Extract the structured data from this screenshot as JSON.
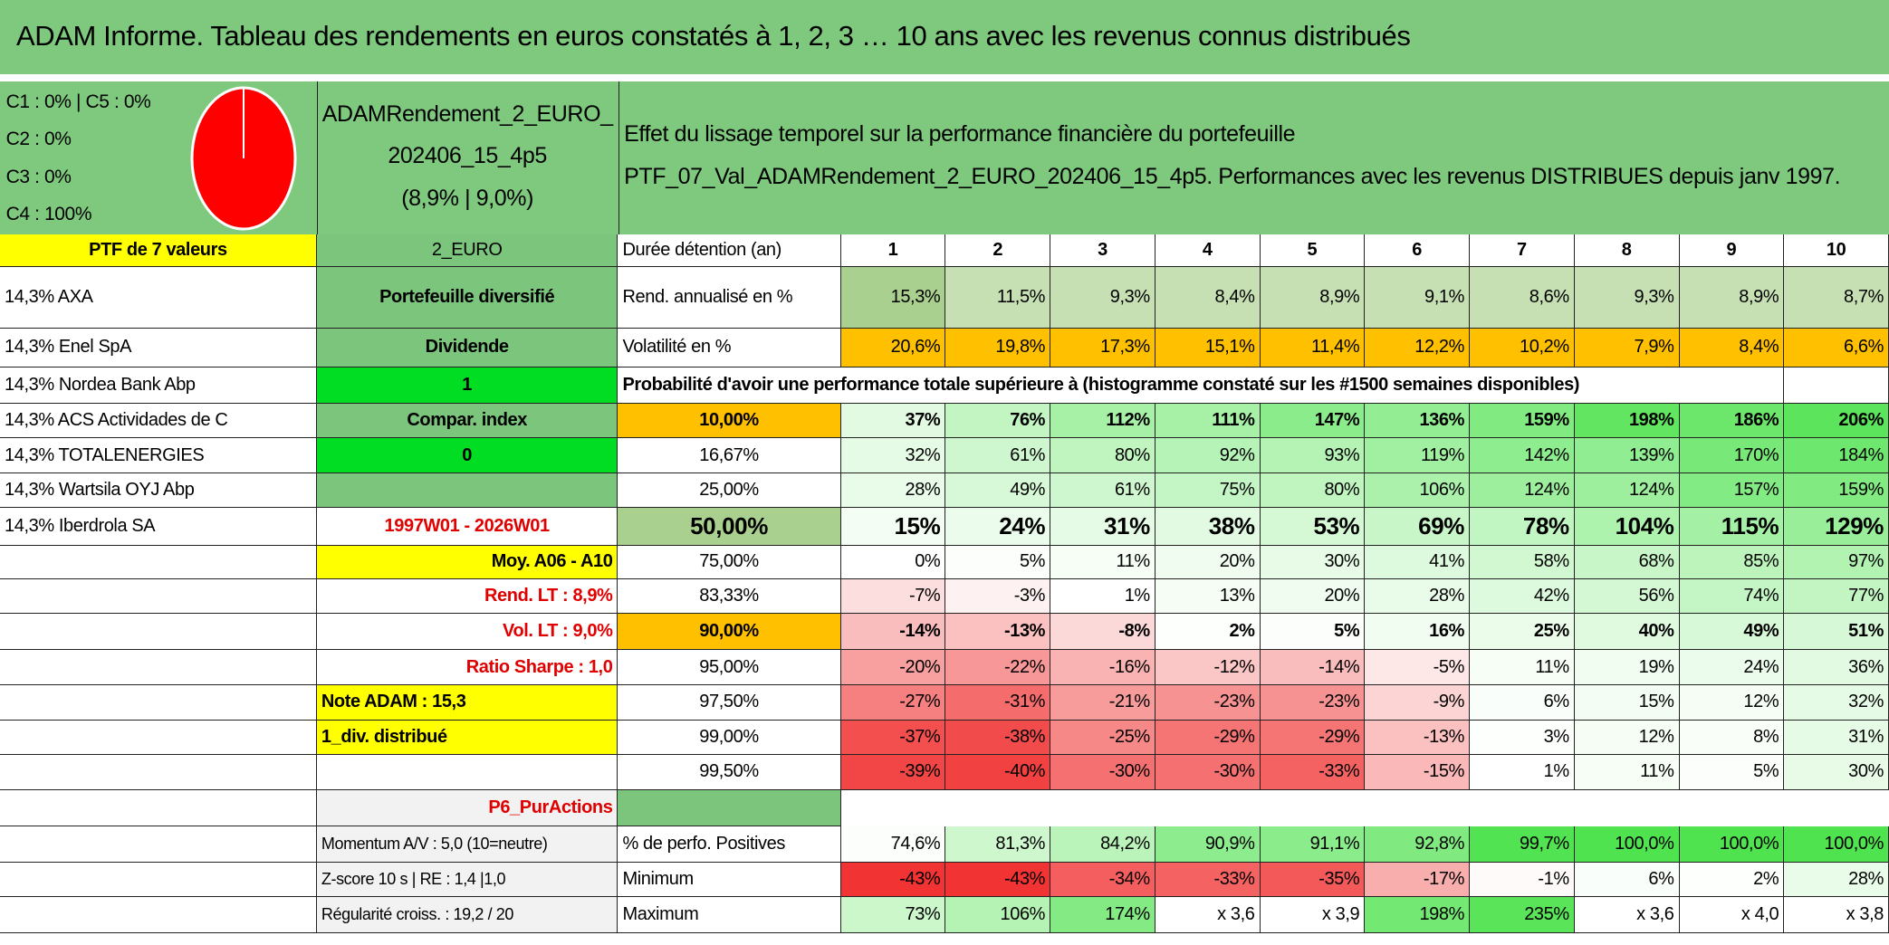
{
  "header": {
    "title": "ADAM Informe. Tableau des rendements en euros constatés à 1, 2, 3 … 10 ans avec les revenus connus distribués"
  },
  "summary": {
    "allocation": [
      "C1 : 0% | C5 : 0%",
      "C2 : 0%",
      "C3 : 0%",
      "C4 : 100%"
    ],
    "portfolio": [
      "ADAMRendement_2_EURO_",
      "202406_15_4p5",
      "(8,9% | 9,0%)"
    ],
    "description": [
      "Effet du lissage temporel sur la performance financière du portefeuille",
      "PTF_07_Val_ADAMRendement_2_EURO_202406_15_4p5. Performances avec les revenus DISTRIBUES depuis janv 1997."
    ]
  },
  "holdings": {
    "title": "PTF de 7 valeurs",
    "items": [
      "14,3% AXA",
      "14,3% Enel SpA",
      "14,3% Nordea Bank Abp",
      "14,3% ACS Actividades de C",
      "14,3% TOTALENERGIES",
      "14,3% Wartsila OYJ Abp",
      "14,3% Iberdrola SA"
    ]
  },
  "profile": [
    "2_EURO",
    "Portefeuille diversifié",
    "Dividende",
    "1",
    "Compar. index",
    "0",
    "1997W01 - 2026W01",
    "Moy. A06 - A10",
    "Rend. LT : 8,9%",
    "Vol. LT : 9,0%",
    "Ratio Sharpe : 1,0",
    "Note ADAM : 15,3",
    "1_div. distribué",
    "P6_PurActions",
    "Momentum A/V : 5,0 (10=neutre)",
    "Z-score 10 s | RE : 1,4 |1,0",
    "Régularité croiss. : 19,2 / 20"
  ],
  "table": {
    "columns_label": "Durée détention (an)",
    "horizons": [
      1,
      2,
      3,
      4,
      5,
      6,
      7,
      8,
      9,
      10
    ],
    "rows": [
      {
        "label": "Rend. annualisé en %",
        "cells": [
          "15,3%",
          "11,5%",
          "9,3%",
          "8,4%",
          "8,9%",
          "9,1%",
          "8,6%",
          "9,3%",
          "8,9%",
          "8,7%"
        ]
      },
      {
        "label": "Volatilité en %",
        "cells": [
          "20,6%",
          "19,8%",
          "17,3%",
          "15,1%",
          "11,4%",
          "12,2%",
          "10,2%",
          "7,9%",
          "8,4%",
          "6,6%"
        ]
      }
    ],
    "probability_title": "Probabilité d'avoir une performance totale supérieure à (histogramme constaté sur les #1500 semaines disponibles)",
    "quantiles": [
      {
        "label": "10,00%",
        "cells": [
          "37%",
          "76%",
          "112%",
          "111%",
          "147%",
          "136%",
          "159%",
          "198%",
          "186%",
          "206%"
        ]
      },
      {
        "label": "16,67%",
        "cells": [
          "32%",
          "61%",
          "80%",
          "92%",
          "93%",
          "119%",
          "142%",
          "139%",
          "170%",
          "184%"
        ]
      },
      {
        "label": "25,00%",
        "cells": [
          "28%",
          "49%",
          "61%",
          "75%",
          "80%",
          "106%",
          "124%",
          "124%",
          "157%",
          "159%"
        ]
      },
      {
        "label": "50,00%",
        "cells": [
          "15%",
          "24%",
          "31%",
          "38%",
          "53%",
          "69%",
          "78%",
          "104%",
          "115%",
          "129%"
        ]
      },
      {
        "label": "75,00%",
        "cells": [
          "0%",
          "5%",
          "11%",
          "20%",
          "30%",
          "41%",
          "58%",
          "68%",
          "85%",
          "97%"
        ]
      },
      {
        "label": "83,33%",
        "cells": [
          "-7%",
          "-3%",
          "1%",
          "13%",
          "20%",
          "28%",
          "42%",
          "56%",
          "74%",
          "77%"
        ]
      },
      {
        "label": "90,00%",
        "cells": [
          "-14%",
          "-13%",
          "-8%",
          "2%",
          "5%",
          "16%",
          "25%",
          "40%",
          "49%",
          "51%"
        ]
      },
      {
        "label": "95,00%",
        "cells": [
          "-20%",
          "-22%",
          "-16%",
          "-12%",
          "-14%",
          "-5%",
          "11%",
          "19%",
          "24%",
          "36%"
        ]
      },
      {
        "label": "97,50%",
        "cells": [
          "-27%",
          "-31%",
          "-21%",
          "-23%",
          "-23%",
          "-9%",
          "6%",
          "15%",
          "12%",
          "32%"
        ]
      },
      {
        "label": "99,00%",
        "cells": [
          "-37%",
          "-38%",
          "-25%",
          "-29%",
          "-29%",
          "-13%",
          "3%",
          "12%",
          "8%",
          "31%"
        ]
      },
      {
        "label": "99,50%",
        "cells": [
          "-39%",
          "-40%",
          "-30%",
          "-30%",
          "-33%",
          "-15%",
          "1%",
          "11%",
          "5%",
          "30%"
        ]
      }
    ],
    "stats": [
      {
        "label": "% de perfo. Positives",
        "cells": [
          "74,6%",
          "81,3%",
          "84,2%",
          "90,9%",
          "91,1%",
          "92,8%",
          "99,7%",
          "100,0%",
          "100,0%",
          "100,0%"
        ]
      },
      {
        "label": "Minimum",
        "cells": [
          "-43%",
          "-43%",
          "-34%",
          "-33%",
          "-35%",
          "-17%",
          "-1%",
          "6%",
          "2%",
          "28%"
        ]
      },
      {
        "label": "Maximum",
        "cells": [
          "73%",
          "106%",
          "174%",
          "x 3,6",
          "x 3,9",
          "198%",
          "235%",
          "x 3,6",
          "x 4,0",
          "x 3,8"
        ]
      }
    ]
  }
}
